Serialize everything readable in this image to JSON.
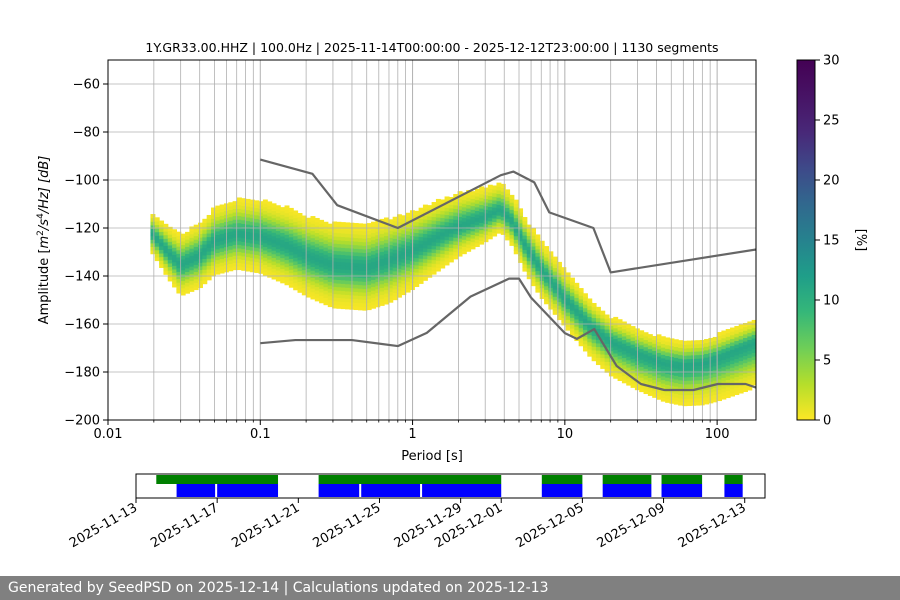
{
  "footer": {
    "text": "Generated by SeedPSD on 2025-12-14 | Calculations updated on 2025-12-13"
  },
  "chart_data": [
    {
      "type": "heatmap",
      "title": "1Y.GR33.00.HHZ | 100.0Hz | 2025-11-14T00:00:00 - 2025-12-12T23:00:00 | 1130 segments",
      "xlabel": "Period [s]",
      "ylabel": "Amplitude [m²/s⁴/Hz] [dB]",
      "ylabel_parts": {
        "prefix": "Amplitude [",
        "base1": "m",
        "sup1": "2",
        "mid": "/s",
        "sup2": "4",
        "suffix": "/Hz] [dB]"
      },
      "x_scale": "log",
      "xlim": [
        0.01,
        180
      ],
      "ylim": [
        -200,
        -50
      ],
      "x_ticks": [
        0.01,
        0.1,
        1,
        10,
        100
      ],
      "x_tick_labels": [
        "0.01",
        "0.1",
        "1",
        "10",
        "100"
      ],
      "y_ticks": [
        -60,
        -80,
        -100,
        -120,
        -140,
        -160,
        -180,
        -200
      ],
      "y_tick_labels": [
        "−60",
        "−80",
        "−100",
        "−120",
        "−140",
        "−160",
        "−180",
        "−200"
      ],
      "grid": "vertical-major-and-minor, horizontal-major",
      "colorbar": {
        "label": "[%]",
        "range": [
          0,
          30
        ],
        "ticks": [
          0,
          5,
          10,
          15,
          20,
          25,
          30
        ],
        "tick_labels": [
          "0",
          "5",
          "10",
          "15",
          "20",
          "25",
          "30"
        ],
        "colormap": "viridis_r"
      },
      "psd_mode": [
        [
          0.019,
          -122
        ],
        [
          0.025,
          -131
        ],
        [
          0.03,
          -136
        ],
        [
          0.04,
          -132
        ],
        [
          0.05,
          -126
        ],
        [
          0.07,
          -123
        ],
        [
          0.1,
          -124
        ],
        [
          0.15,
          -128
        ],
        [
          0.2,
          -132
        ],
        [
          0.3,
          -136
        ],
        [
          0.5,
          -137
        ],
        [
          0.7,
          -134
        ],
        [
          1.0,
          -130
        ],
        [
          1.5,
          -124
        ],
        [
          2.0,
          -120
        ],
        [
          3.0,
          -116
        ],
        [
          3.8,
          -113
        ],
        [
          4.5,
          -118
        ],
        [
          5.5,
          -128
        ],
        [
          7.0,
          -138
        ],
        [
          10,
          -150
        ],
        [
          15,
          -162
        ],
        [
          20,
          -168
        ],
        [
          30,
          -173
        ],
        [
          45,
          -177
        ],
        [
          60,
          -178
        ],
        [
          80,
          -177
        ],
        [
          100,
          -175
        ],
        [
          140,
          -171
        ],
        [
          180,
          -168
        ]
      ],
      "psd_spread": [
        [
          0.019,
          7,
          7
        ],
        [
          0.03,
          11,
          11
        ],
        [
          0.05,
          12,
          12
        ],
        [
          0.1,
          13,
          13
        ],
        [
          0.3,
          15,
          15
        ],
        [
          0.7,
          15,
          15
        ],
        [
          1.5,
          13,
          12
        ],
        [
          3.8,
          10,
          8
        ],
        [
          6,
          10,
          10
        ],
        [
          10,
          10,
          10
        ],
        [
          20,
          9,
          12
        ],
        [
          60,
          9,
          14
        ],
        [
          180,
          8,
          16
        ]
      ],
      "high_noise_model": [
        [
          0.1,
          -91.5
        ],
        [
          0.22,
          -97.4
        ],
        [
          0.32,
          -110.5
        ],
        [
          0.8,
          -120
        ],
        [
          3.8,
          -98
        ],
        [
          4.6,
          -96.5
        ],
        [
          6.3,
          -101
        ],
        [
          7.9,
          -113.5
        ],
        [
          15.4,
          -120
        ],
        [
          20,
          -138.5
        ],
        [
          354.8,
          -126
        ]
      ],
      "low_noise_model": [
        [
          0.1,
          -168
        ],
        [
          0.17,
          -166.7
        ],
        [
          0.4,
          -166.7
        ],
        [
          0.8,
          -169.2
        ],
        [
          1.24,
          -163.7
        ],
        [
          2.4,
          -148.6
        ],
        [
          4.3,
          -141.1
        ],
        [
          5.0,
          -141.1
        ],
        [
          6.0,
          -149
        ],
        [
          10,
          -163.8
        ],
        [
          12,
          -166.2
        ],
        [
          15.6,
          -162.1
        ],
        [
          21.9,
          -177.5
        ],
        [
          31.6,
          -185
        ],
        [
          45,
          -187.5
        ],
        [
          70,
          -187.5
        ],
        [
          101,
          -185
        ],
        [
          154,
          -185
        ],
        [
          200,
          -187.5
        ]
      ],
      "heatmap_max_percent": 11
    },
    {
      "type": "timeline",
      "x_ticks": [
        "2025-11-13",
        "2025-11-17",
        "2025-11-21",
        "2025-11-25",
        "2025-11-29",
        "2025-12-01",
        "2025-12-05",
        "2025-12-09",
        "2025-12-13"
      ],
      "x_tick_labels": [
        "2025-11-13",
        "2025-11-17",
        "2025-11-21",
        "2025-11-25",
        "2025-11-29",
        "2025-12-01",
        "2025-12-05",
        "2025-12-09",
        "2025-12-13"
      ],
      "xlim": [
        "2025-11-13",
        "2025-12-14"
      ],
      "color_available": "#008000",
      "color_processed": "#0000ff",
      "available": [
        [
          "2025-11-14",
          "2025-11-20"
        ],
        [
          "2025-11-22",
          "2025-12-01"
        ],
        [
          "2025-12-03",
          "2025-12-05"
        ],
        [
          "2025-12-06",
          "2025-12-08.4"
        ],
        [
          "2025-12-08.9",
          "2025-12-10.9"
        ],
        [
          "2025-12-12",
          "2025-12-12.9"
        ]
      ],
      "processed": [
        [
          "2025-11-15",
          "2025-11-16.9"
        ],
        [
          "2025-11-17",
          "2025-11-20"
        ],
        [
          "2025-11-22",
          "2025-11-24"
        ],
        [
          "2025-11-24.1",
          "2025-11-27"
        ],
        [
          "2025-11-27.1",
          "2025-12-01"
        ],
        [
          "2025-12-03",
          "2025-12-05"
        ],
        [
          "2025-12-06",
          "2025-12-08.4"
        ],
        [
          "2025-12-08.9",
          "2025-12-10.9"
        ],
        [
          "2025-12-12",
          "2025-12-12.9"
        ]
      ]
    }
  ]
}
